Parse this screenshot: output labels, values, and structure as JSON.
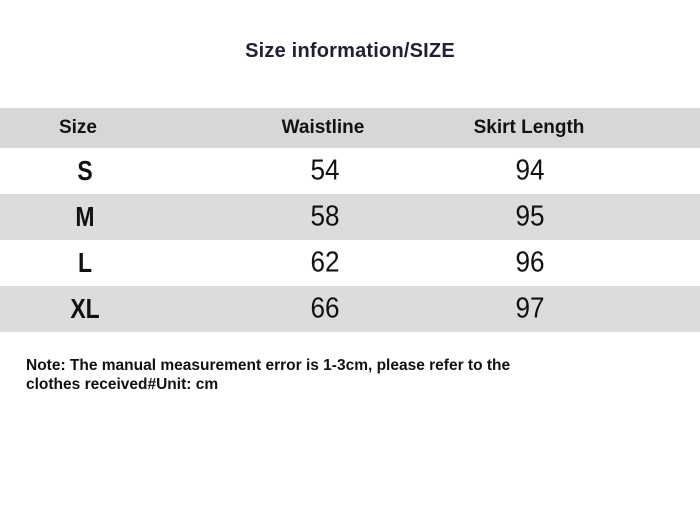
{
  "title": "Size information/SIZE",
  "table": {
    "columns": [
      "Size",
      "Waistline",
      "Skirt Length"
    ],
    "rows": [
      {
        "size": "S",
        "waistline": "54",
        "skirt_length": "94"
      },
      {
        "size": "M",
        "waistline": "58",
        "skirt_length": "95"
      },
      {
        "size": "L",
        "waistline": "62",
        "skirt_length": "96"
      },
      {
        "size": "XL",
        "waistline": "66",
        "skirt_length": "97"
      }
    ]
  },
  "note": {
    "line1": "Note: The manual measurement error is 1-3cm, please refer to the",
    "line2": "clothes received#Unit: cm"
  },
  "colors": {
    "body_bg": "#ffffff",
    "header_bg": "#d7d7d7",
    "alt_row_bg": "#dcdcdc",
    "text": "#111111",
    "title_text": "#231e31"
  },
  "chart_data": {
    "type": "table",
    "title": "Size information/SIZE",
    "columns": [
      "Size",
      "Waistline",
      "Skirt Length"
    ],
    "rows": [
      [
        "S",
        54,
        94
      ],
      [
        "M",
        58,
        95
      ],
      [
        "L",
        62,
        96
      ],
      [
        "XL",
        66,
        97
      ]
    ],
    "unit": "cm",
    "note": "Note: The manual measurement error is 1-3cm, please refer to the clothes received#Unit: cm"
  }
}
